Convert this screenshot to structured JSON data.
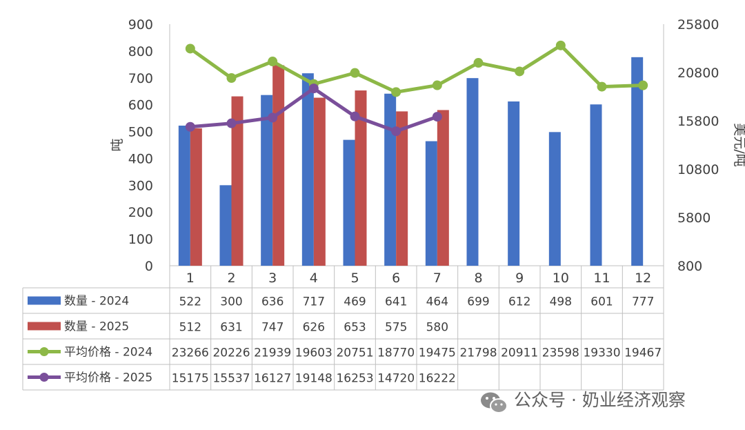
{
  "chart_data": {
    "type": "bar",
    "categories": [
      "1",
      "2",
      "3",
      "4",
      "5",
      "6",
      "7",
      "8",
      "9",
      "10",
      "11",
      "12"
    ],
    "series": [
      {
        "name": "数量 - 2024",
        "kind": "bar",
        "axis": "left",
        "color": "#4472C4",
        "values": [
          522,
          300,
          636,
          717,
          469,
          641,
          464,
          699,
          612,
          498,
          601,
          777
        ]
      },
      {
        "name": "数量 - 2025",
        "kind": "bar",
        "axis": "left",
        "color": "#C0504D",
        "values": [
          512,
          631,
          747,
          626,
          653,
          575,
          580,
          null,
          null,
          null,
          null,
          null
        ]
      },
      {
        "name": "平均价格 - 2024",
        "kind": "line",
        "axis": "right",
        "color": "#8DB847",
        "values": [
          23266,
          20226,
          21939,
          19603,
          20751,
          18770,
          19475,
          21798,
          20911,
          23598,
          19330,
          19467
        ]
      },
      {
        "name": "平均价格 - 2025",
        "kind": "line",
        "axis": "right",
        "color": "#7A4F9A",
        "values": [
          15175,
          15537,
          16127,
          19148,
          16253,
          14720,
          16222,
          null,
          null,
          null,
          null,
          null
        ]
      }
    ],
    "ylabel": "吨",
    "y2label": "美元/吨",
    "ylim": [
      0,
      900
    ],
    "yticks": [
      "0",
      "100",
      "200",
      "300",
      "400",
      "500",
      "600",
      "700",
      "800",
      "900"
    ],
    "y2lim": [
      800,
      25800
    ],
    "y2ticks": [
      "800",
      "5800",
      "10800",
      "15800",
      "20800",
      "25800"
    ],
    "data_table": true,
    "grid": false
  },
  "watermark": {
    "icon": "wechat-icon",
    "text": "公众号 · 奶业经济观察"
  }
}
